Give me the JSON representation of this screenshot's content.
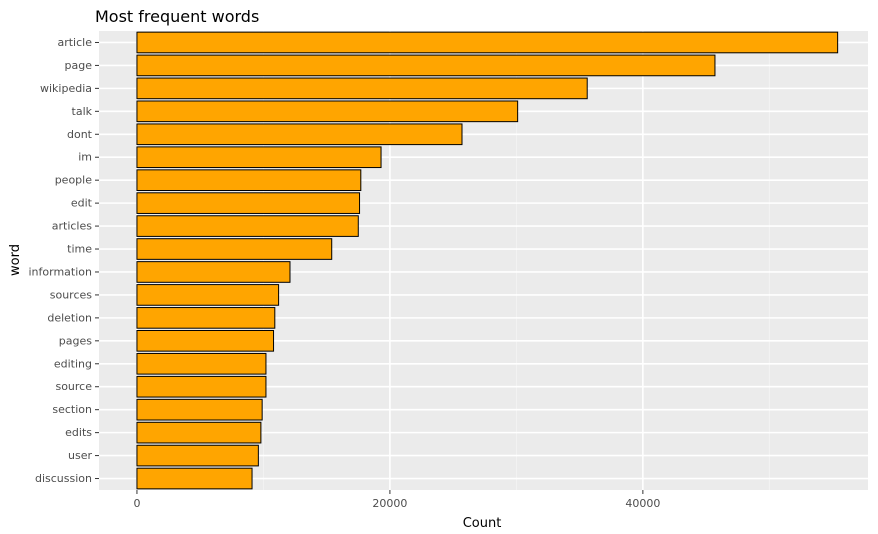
{
  "chart_data": {
    "type": "bar",
    "orientation": "horizontal",
    "title": "Most frequent words",
    "xlabel": "Count",
    "ylabel": "word",
    "xlim": [
      -3000,
      57800
    ],
    "x_ticks": [
      0,
      20000,
      40000
    ],
    "x_tick_labels": [
      "0",
      "20000",
      "40000"
    ],
    "grid": true,
    "legend": "none",
    "colors": {
      "bar_fill": "#FFA500",
      "bar_stroke": "#000000",
      "panel_background": "#EBEBEB",
      "grid_major": "#FFFFFF",
      "grid_minor": "#F5F5F5",
      "tick_text": "#4D4D4D"
    },
    "categories": [
      "article",
      "page",
      "wikipedia",
      "talk",
      "dont",
      "im",
      "people",
      "edit",
      "articles",
      "time",
      "information",
      "sources",
      "deletion",
      "pages",
      "editing",
      "source",
      "section",
      "edits",
      "user",
      "discussion"
    ],
    "values": [
      55400,
      45700,
      35600,
      30100,
      25700,
      19300,
      17700,
      17600,
      17500,
      15400,
      12100,
      11200,
      10900,
      10800,
      10200,
      10200,
      9900,
      9800,
      9600,
      9100
    ]
  }
}
